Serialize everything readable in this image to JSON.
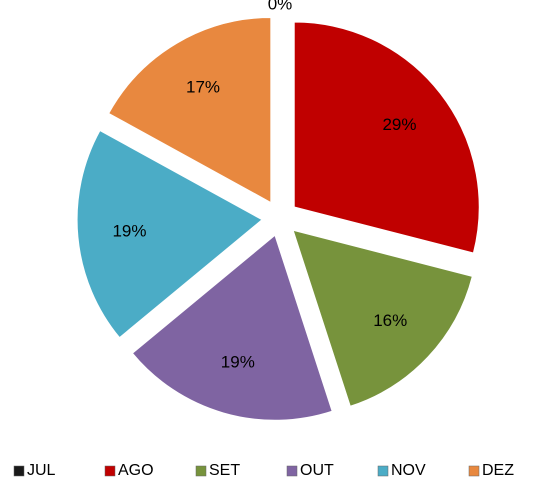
{
  "chart_data": {
    "type": "pie",
    "categories": [
      "JUL",
      "AGO",
      "SET",
      "OUT",
      "NOV",
      "DEZ"
    ],
    "values": [
      0,
      29,
      16,
      19,
      19,
      17
    ],
    "value_labels": [
      "0%",
      "29%",
      "16%",
      "19%",
      "19%",
      "17%"
    ],
    "colors": [
      "#1a1a1a",
      "#c00000",
      "#77933c",
      "#7f64a2",
      "#4bacc6",
      "#e8883f"
    ],
    "legend": "bottom"
  }
}
